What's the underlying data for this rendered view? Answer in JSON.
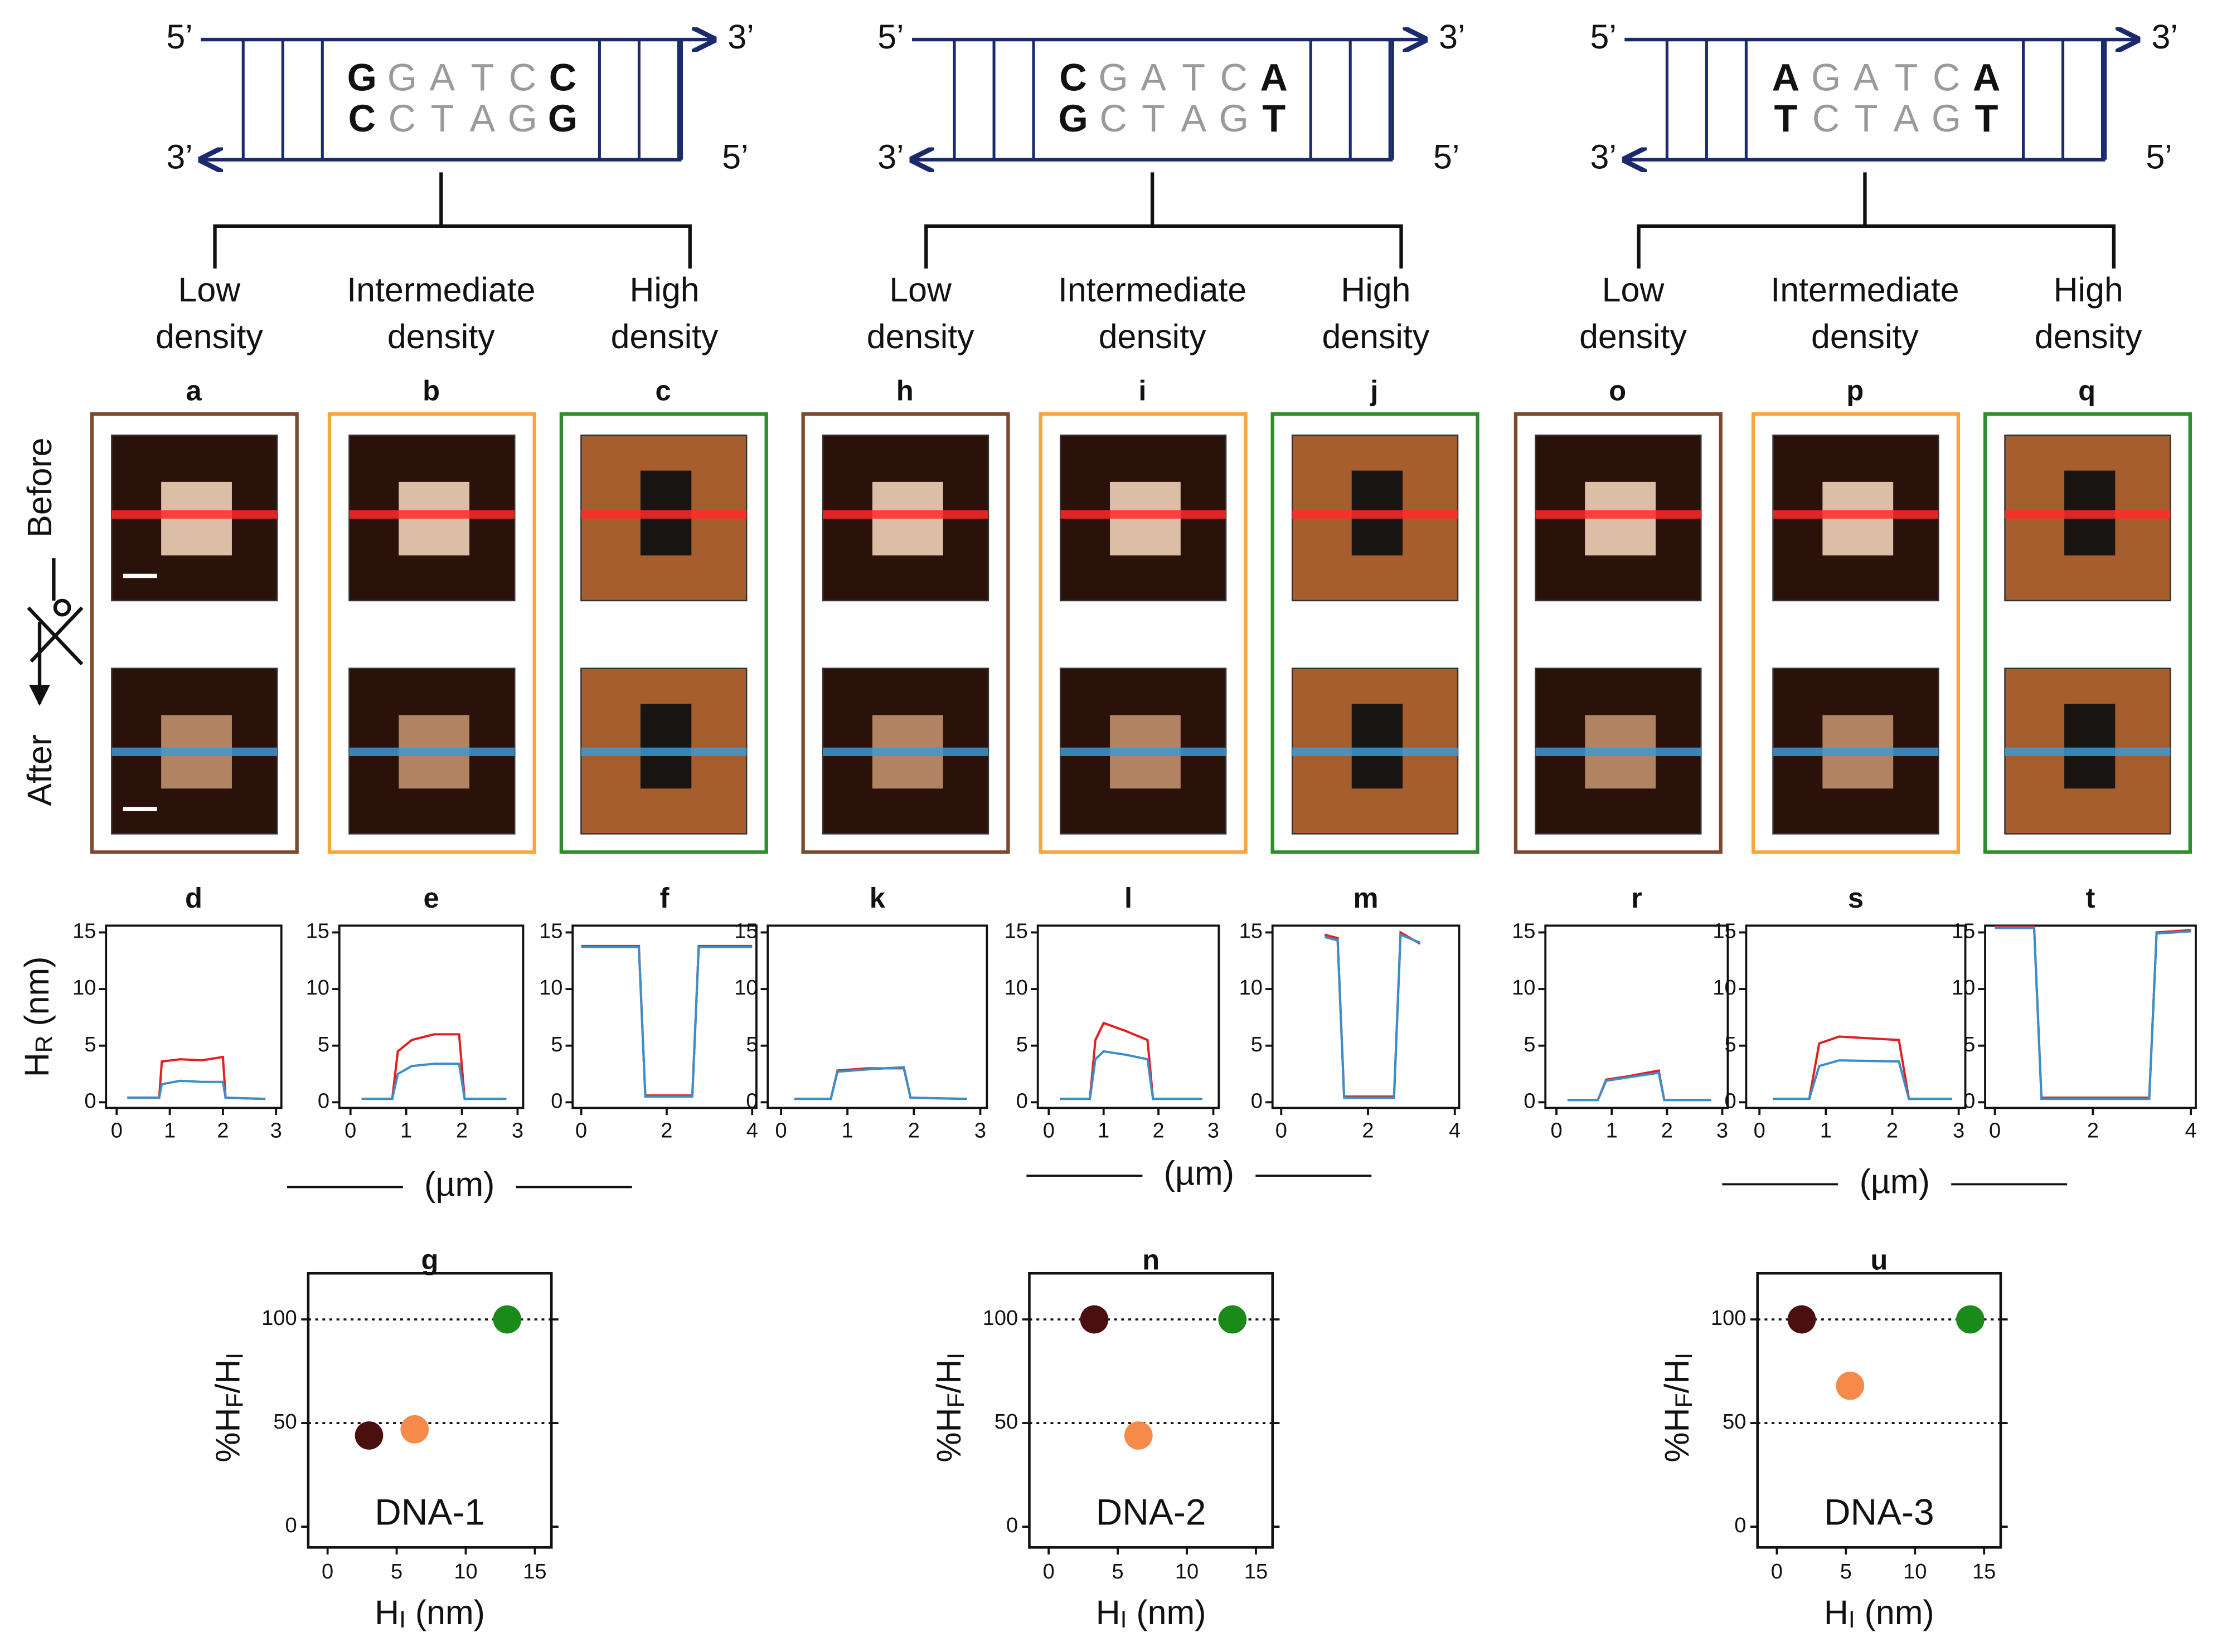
{
  "strand_labels": {
    "five": "5’",
    "three": "3’"
  },
  "image_rows": [
    "Before",
    "After"
  ],
  "groups": [
    {
      "top": [
        "G",
        "G",
        "A",
        "T",
        "C",
        "C"
      ],
      "bottom": [
        "C",
        "C",
        "T",
        "A",
        "G",
        "G"
      ],
      "densities": [
        [
          "Low",
          "density"
        ],
        [
          "Intermediate",
          "density"
        ],
        [
          "High",
          "density"
        ]
      ],
      "image_panels": [
        "a",
        "b",
        "c"
      ],
      "xlabel": "(µm)"
    },
    {
      "top": [
        "C",
        "G",
        "A",
        "T",
        "C",
        "A"
      ],
      "bottom": [
        "G",
        "C",
        "T",
        "A",
        "G",
        "T"
      ],
      "densities": [
        [
          "Low",
          "density"
        ],
        [
          "Intermediate",
          "density"
        ],
        [
          "High",
          "density"
        ]
      ],
      "image_panels": [
        "h",
        "i",
        "j"
      ],
      "xlabel": "(µm)"
    },
    {
      "top": [
        "A",
        "G",
        "A",
        "T",
        "C",
        "A"
      ],
      "bottom": [
        "T",
        "C",
        "T",
        "A",
        "G",
        "T"
      ],
      "densities": [
        [
          "Low",
          "density"
        ],
        [
          "Intermediate",
          "density"
        ],
        [
          "High",
          "density"
        ]
      ],
      "image_panels": [
        "o",
        "p",
        "q"
      ],
      "xlabel": "(µm)"
    }
  ],
  "chart_data": [
    {
      "type": "line",
      "title": "d",
      "ylabel_parts": [
        "H",
        "R",
        " (nm)"
      ],
      "x": [
        0.2,
        0.8,
        0.85,
        1.2,
        1.6,
        2.0,
        2.05,
        2.8
      ],
      "series": [
        {
          "color": "#e02020",
          "values": [
            0.4,
            0.4,
            3.6,
            3.8,
            3.7,
            4.0,
            0.4,
            0.3
          ]
        },
        {
          "color": "#3a8fc8",
          "values": [
            0.4,
            0.4,
            1.6,
            1.9,
            1.8,
            1.8,
            0.4,
            0.3
          ]
        }
      ],
      "xlim": [
        -0.2,
        3.1
      ],
      "xticks": [
        0,
        1,
        2,
        3
      ],
      "ylim": [
        -0.5,
        15.6
      ],
      "yticks": [
        0,
        5,
        10,
        15
      ]
    },
    {
      "type": "line",
      "title": "e",
      "x": [
        0.2,
        0.75,
        0.85,
        1.1,
        1.5,
        1.95,
        2.05,
        2.8
      ],
      "series": [
        {
          "color": "#e02020",
          "values": [
            0.3,
            0.3,
            4.5,
            5.5,
            6.0,
            6.0,
            0.3,
            0.3
          ]
        },
        {
          "color": "#3a8fc8",
          "values": [
            0.3,
            0.3,
            2.5,
            3.2,
            3.4,
            3.4,
            0.3,
            0.3
          ]
        }
      ],
      "xlim": [
        -0.2,
        3.1
      ],
      "xticks": [
        0,
        1,
        2,
        3
      ],
      "ylim": [
        -0.5,
        15.6
      ],
      "yticks": [
        0,
        5,
        10,
        15
      ]
    },
    {
      "type": "line",
      "title": "f",
      "x": [
        0,
        1.35,
        1.5,
        2.6,
        2.75,
        4
      ],
      "series": [
        {
          "color": "#e02020",
          "values": [
            13.8,
            13.8,
            0.6,
            0.6,
            13.8,
            13.8
          ]
        },
        {
          "color": "#3a8fc8",
          "values": [
            13.7,
            13.7,
            0.5,
            0.5,
            13.7,
            13.7
          ]
        }
      ],
      "xlim": [
        -0.2,
        4.1
      ],
      "xticks": [
        0,
        2,
        4
      ],
      "ylim": [
        -0.5,
        15.6
      ],
      "yticks": [
        0,
        5,
        10,
        15
      ]
    },
    {
      "type": "line",
      "title": "k",
      "x": [
        0.2,
        0.75,
        0.85,
        1.3,
        1.85,
        1.95,
        2.8
      ],
      "series": [
        {
          "color": "#e02020",
          "values": [
            0.3,
            0.3,
            2.8,
            3.0,
            3.0,
            0.4,
            0.3
          ]
        },
        {
          "color": "#3a8fc8",
          "values": [
            0.3,
            0.3,
            2.7,
            2.9,
            3.1,
            0.4,
            0.3
          ]
        }
      ],
      "xlim": [
        -0.2,
        3.1
      ],
      "xticks": [
        0,
        1,
        2,
        3
      ],
      "ylim": [
        -0.5,
        15.6
      ],
      "yticks": [
        0,
        5,
        10,
        15
      ]
    },
    {
      "type": "line",
      "title": "l",
      "x": [
        0.2,
        0.75,
        0.85,
        1.0,
        1.4,
        1.8,
        1.9,
        2.8
      ],
      "series": [
        {
          "color": "#e02020",
          "values": [
            0.3,
            0.3,
            5.5,
            7.0,
            6.3,
            5.5,
            0.3,
            0.3
          ]
        },
        {
          "color": "#3a8fc8",
          "values": [
            0.3,
            0.3,
            3.8,
            4.5,
            4.2,
            3.8,
            0.3,
            0.3
          ]
        }
      ],
      "xlim": [
        -0.2,
        3.1
      ],
      "xticks": [
        0,
        1,
        2,
        3
      ],
      "ylim": [
        -0.5,
        15.6
      ],
      "yticks": [
        0,
        5,
        10,
        15
      ]
    },
    {
      "type": "line",
      "title": "m",
      "x": [
        1,
        1.3,
        1.45,
        2.6,
        2.75,
        3.2
      ],
      "series": [
        {
          "color": "#e02020",
          "values": [
            14.8,
            14.5,
            0.5,
            0.5,
            15,
            14
          ]
        },
        {
          "color": "#3a8fc8",
          "values": [
            14.6,
            14.3,
            0.4,
            0.4,
            14.8,
            14.1
          ]
        }
      ],
      "xlim": [
        -0.2,
        4.1
      ],
      "xticks": [
        0,
        2,
        4
      ],
      "ylim": [
        -0.5,
        15.6
      ],
      "yticks": [
        0,
        5,
        10,
        15
      ]
    },
    {
      "type": "line",
      "title": "r",
      "x": [
        0.2,
        0.75,
        0.9,
        1.3,
        1.85,
        1.95,
        2.8
      ],
      "series": [
        {
          "color": "#e02020",
          "values": [
            0.2,
            0.2,
            2.0,
            2.3,
            2.8,
            0.2,
            0.2
          ]
        },
        {
          "color": "#3a8fc8",
          "values": [
            0.2,
            0.2,
            1.9,
            2.2,
            2.6,
            0.2,
            0.2
          ]
        }
      ],
      "xlim": [
        -0.2,
        3.1
      ],
      "xticks": [
        0,
        1,
        2,
        3
      ],
      "ylim": [
        -0.5,
        15.6
      ],
      "yticks": [
        0,
        5,
        10,
        15
      ]
    },
    {
      "type": "line",
      "title": "s",
      "x": [
        0.2,
        0.75,
        0.9,
        1.2,
        2.1,
        2.25,
        2.9
      ],
      "series": [
        {
          "color": "#e02020",
          "values": [
            0.3,
            0.3,
            5.2,
            5.8,
            5.5,
            0.3,
            0.3
          ]
        },
        {
          "color": "#3a8fc8",
          "values": [
            0.3,
            0.3,
            3.2,
            3.7,
            3.6,
            0.3,
            0.3
          ]
        }
      ],
      "xlim": [
        -0.2,
        3.1
      ],
      "xticks": [
        0,
        1,
        2,
        3
      ],
      "ylim": [
        -0.5,
        15.6
      ],
      "yticks": [
        0,
        5,
        10,
        15
      ]
    },
    {
      "type": "line",
      "title": "t",
      "x": [
        0,
        0.8,
        0.95,
        3.15,
        3.3,
        4
      ],
      "series": [
        {
          "color": "#e02020",
          "values": [
            15.5,
            15.5,
            0.4,
            0.4,
            15,
            15.2
          ]
        },
        {
          "color": "#3a8fc8",
          "values": [
            15.4,
            15.4,
            0.3,
            0.3,
            14.9,
            15.1
          ]
        }
      ],
      "xlim": [
        -0.2,
        4.1
      ],
      "xticks": [
        0,
        2,
        4
      ],
      "ylim": [
        -0.5,
        15.6
      ],
      "yticks": [
        0,
        5,
        10,
        15
      ]
    },
    {
      "type": "scatter",
      "title": "g",
      "annotation": "DNA-1",
      "x": [
        3,
        6.3,
        13
      ],
      "values": [
        44,
        47,
        100
      ],
      "colors": [
        "#4a1010",
        "#f58a4a",
        "#1a8a1a"
      ],
      "reference_lines": [
        50,
        100
      ],
      "xlim": [
        -1.4,
        16.2
      ],
      "xticks": [
        0,
        5,
        10,
        15
      ],
      "ylim": [
        -10,
        125
      ],
      "yticks": [
        0,
        50,
        100
      ],
      "xlabel_parts": [
        "H",
        "I",
        " (nm)"
      ],
      "ylabel_parts": [
        "%H",
        "F",
        "/H",
        "I"
      ]
    },
    {
      "type": "scatter",
      "title": "n",
      "annotation": "DNA-2",
      "x": [
        3.3,
        6.5,
        13.3
      ],
      "values": [
        100,
        44,
        100
      ],
      "colors": [
        "#4a1010",
        "#f58a4a",
        "#1a8a1a"
      ],
      "reference_lines": [
        50,
        100
      ],
      "xlim": [
        -1.4,
        16.2
      ],
      "xticks": [
        0,
        5,
        10,
        15
      ],
      "ylim": [
        -10,
        125
      ],
      "yticks": [
        0,
        50,
        100
      ],
      "xlabel_parts": [
        "H",
        "I",
        " (nm)"
      ],
      "ylabel_parts": [
        "%H",
        "F",
        "/H",
        "I"
      ]
    },
    {
      "type": "scatter",
      "title": "u",
      "annotation": "DNA-3",
      "x": [
        1.8,
        5.3,
        14
      ],
      "values": [
        100,
        68,
        100
      ],
      "colors": [
        "#4a1010",
        "#f58a4a",
        "#1a8a1a"
      ],
      "reference_lines": [
        50,
        100
      ],
      "xlim": [
        -1.4,
        16.2
      ],
      "xticks": [
        0,
        5,
        10,
        15
      ],
      "ylim": [
        -10,
        125
      ],
      "yticks": [
        0,
        50,
        100
      ],
      "xlabel_parts": [
        "H",
        "I",
        " (nm)"
      ],
      "ylabel_parts": [
        "%H",
        "F",
        "/H",
        "I"
      ]
    }
  ]
}
